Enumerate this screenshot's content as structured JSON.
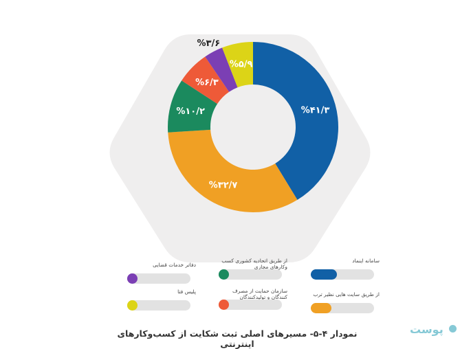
{
  "chart_data": {
    "type": "pie",
    "title": "نمودار ۴-۵- مسیرهای اصلی ثبت شکایت از کسب‌وکارهای اینترنتی",
    "slices": [
      {
        "label": "سامانه اینماد",
        "value": 41.3,
        "text": "%۴۱/۳",
        "color": "#1160a6"
      },
      {
        "label": "از طریق سایت هایی نظیر ترب",
        "value": 32.7,
        "text": "%۳۲/۷",
        "color": "#f0a024"
      },
      {
        "label": "از طریق اتحادیه کشوری کسب وکارهای مجازی",
        "value": 10.2,
        "text": "%۱۰/۲",
        "color": "#1b8a5e"
      },
      {
        "label": "سازمان حمایت از مصرف کنندگان و تولیدکنندگان",
        "value": 6.3,
        "text": "%۶/۳",
        "color": "#ee5a38"
      },
      {
        "label": "دفاتر خدمات قضایی",
        "value": 3.6,
        "text": "%۳/۶",
        "color": "#7b3fb4"
      },
      {
        "label": "پلیس فتا",
        "value": 5.9,
        "text": "%۵/۹",
        "color": "#dcd417"
      }
    ]
  },
  "legend": [
    {
      "label": "سامانه اینماد",
      "fill": 0.413,
      "color": "#1160a6"
    },
    {
      "label": "از طریق سایت هایی نظیر ترب",
      "fill": 0.327,
      "color": "#f0a024"
    },
    {
      "label": "از طریق اتحادیه کشوری کسب وکارهای مجازی",
      "fill": 0.102,
      "color": "#1b8a5e"
    },
    {
      "label": "سازمان حمایت از مصرف کنندگان و تولیدکنندگان",
      "fill": 0.063,
      "color": "#ee5a38"
    },
    {
      "label": "دفاتر خدمات قضایی",
      "fill": 0.036,
      "color": "#7b3fb4"
    },
    {
      "label": "پلیس فتا",
      "fill": 0.059,
      "color": "#dcd417"
    }
  ],
  "caption": "نمودار ۴-۵- مسیرهای اصلی ثبت شکایت از کسب‌وکارهای اینترنتی",
  "brand": {
    "name": "پوست"
  }
}
